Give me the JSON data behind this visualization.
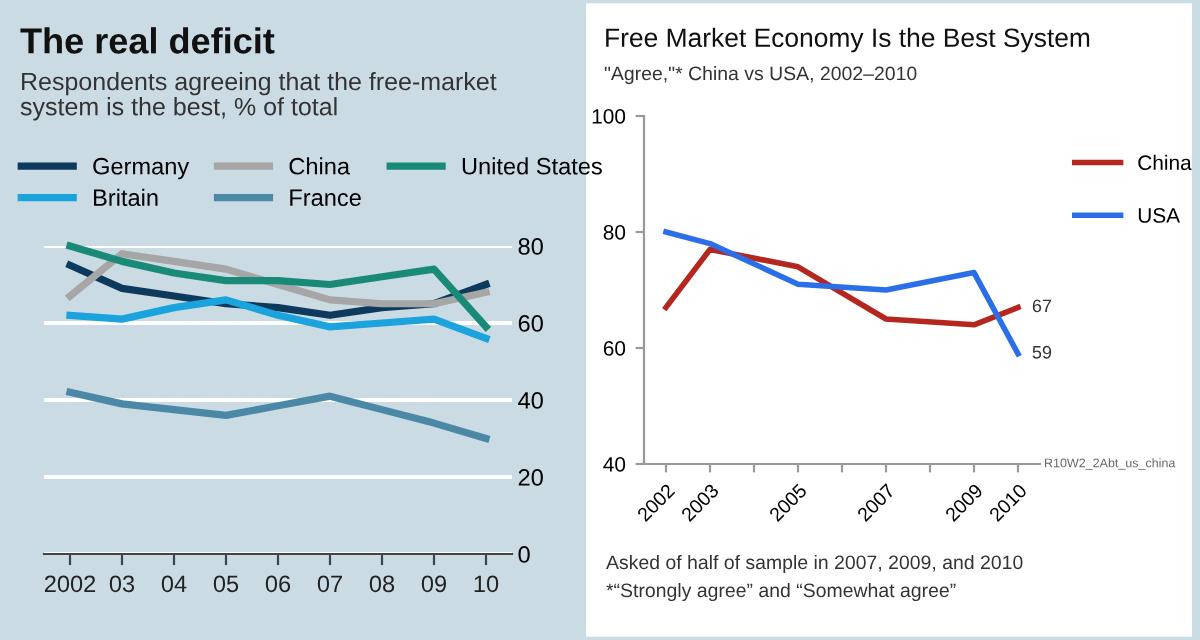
{
  "chart_data": [
    {
      "type": "line",
      "title": "The real deficit",
      "subtitle": "Respondents agreeing that the free-market\nsystem is the best, % of total",
      "categories": [
        "2002",
        "03",
        "04",
        "05",
        "06",
        "07",
        "08",
        "09",
        "10"
      ],
      "series": [
        {
          "name": "Germany",
          "color": "#0d3a5c",
          "values": [
            75,
            69,
            67,
            65,
            64,
            62,
            64,
            65,
            70
          ]
        },
        {
          "name": "China",
          "color": "#a6a6a6",
          "values": [
            67,
            78,
            76,
            74,
            70,
            66,
            65,
            65,
            68
          ]
        },
        {
          "name": "United States",
          "color": "#1a8a78",
          "values": [
            80,
            76,
            73,
            71,
            71,
            70,
            72,
            74,
            59
          ]
        },
        {
          "name": "Britain",
          "color": "#1aa3dc",
          "values": [
            62,
            61,
            64,
            66,
            62,
            59,
            60,
            61,
            56
          ]
        },
        {
          "name": "France",
          "color": "#4a88a6",
          "values": [
            42,
            39,
            37.5,
            36,
            38.5,
            41,
            37.5,
            34,
            30
          ]
        }
      ],
      "ylim": [
        0,
        80
      ],
      "yticks": [
        0,
        20,
        40,
        60,
        80
      ],
      "grid": "y",
      "legend": "top"
    },
    {
      "type": "line",
      "title": "Free Market Economy Is the Best System",
      "subtitle": "\"Agree,\"* China vs USA, 2002–2010",
      "x": [
        2002,
        2003,
        2005,
        2007,
        2009,
        2010
      ],
      "series": [
        {
          "name": "China",
          "color": "#b5261e",
          "values": [
            67,
            77,
            74,
            65,
            64,
            67
          ],
          "value_labels": [
            null,
            null,
            null,
            null,
            null,
            "67"
          ]
        },
        {
          "name": "USA",
          "color": "#2a6ee8",
          "values": [
            80,
            78,
            71,
            70,
            73,
            59
          ],
          "value_labels": [
            null,
            null,
            null,
            null,
            null,
            "59"
          ]
        }
      ],
      "xlim": [
        2001.5,
        2010.5
      ],
      "xticks": [
        2002,
        2003,
        {
          "value": 2004,
          "label": null
        },
        2005,
        {
          "value": 2006,
          "label": null
        },
        2007,
        {
          "value": 2008,
          "label": null
        },
        2009,
        2010
      ],
      "ylim": [
        40,
        100
      ],
      "yticks": [
        40,
        60,
        80,
        100
      ],
      "grid": false,
      "legend": "right",
      "annotations": [
        "R10W2_2Abt_us_china",
        "Asked of half of sample in 2007, 2009, and 2010",
        "*“Strongly agree” and “Somewhat agree”"
      ]
    }
  ]
}
